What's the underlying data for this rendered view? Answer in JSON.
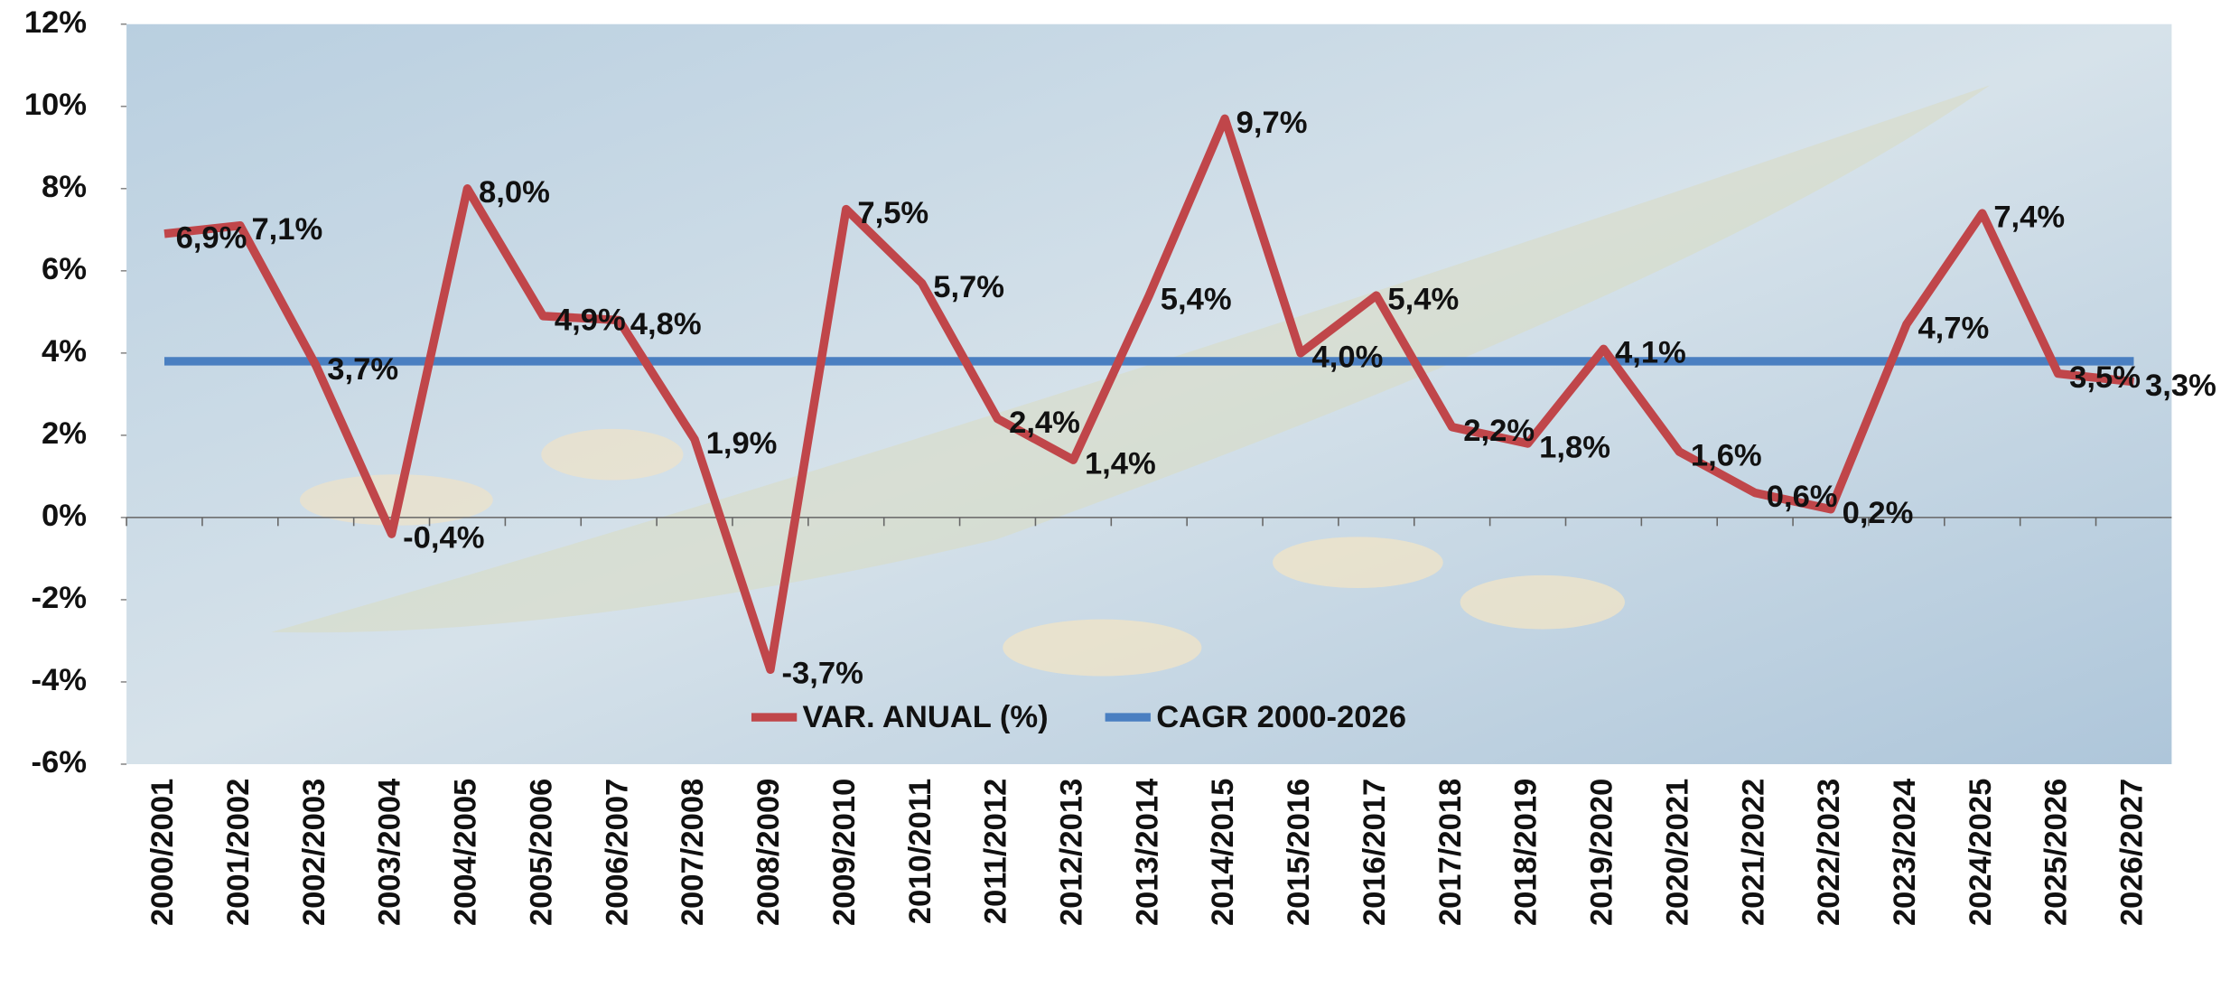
{
  "chart_data": {
    "type": "line",
    "categories": [
      "2000/2001",
      "2001/2002",
      "2002/2003",
      "2003/2004",
      "2004/2005",
      "2005/2006",
      "2006/2007",
      "2007/2008",
      "2008/2009",
      "2009/2010",
      "2010/2011",
      "2011/2012",
      "2012/2013",
      "2013/2014",
      "2014/2015",
      "2015/2016",
      "2016/2017",
      "2017/2018",
      "2018/2019",
      "2019/2020",
      "2020/2021",
      "2021/2022",
      "2022/2023",
      "2023/2024",
      "2024/2025",
      "2025/2026",
      "2026/2027"
    ],
    "series": [
      {
        "name": "VAR. ANUAL (%)",
        "color": "#c0464a",
        "values": [
          6.9,
          7.1,
          3.7,
          -0.4,
          8.0,
          4.9,
          4.8,
          1.9,
          -3.7,
          7.5,
          5.7,
          2.4,
          1.4,
          5.4,
          9.7,
          4.0,
          5.4,
          2.2,
          1.8,
          4.1,
          1.6,
          0.6,
          0.2,
          4.7,
          7.4,
          3.5,
          3.3
        ],
        "value_labels": [
          "6,9%",
          "7,1%",
          "3,7%",
          "-0,4%",
          "8,0%",
          "4,9%",
          "4,8%",
          "1,9%",
          "-3,7%",
          "7,5%",
          "5,7%",
          "2,4%",
          "1,4%",
          "5,4%",
          "9,7%",
          "4,0%",
          "5,4%",
          "2,2%",
          "1,8%",
          "4,1%",
          "1,6%",
          "0,6%",
          "0,2%",
          "4,7%",
          "7,4%",
          "3,5%",
          "3,3%"
        ]
      },
      {
        "name": "CAGR 2000-2026",
        "color": "#4a7fc1",
        "values": [
          3.8,
          3.8,
          3.8,
          3.8,
          3.8,
          3.8,
          3.8,
          3.8,
          3.8,
          3.8,
          3.8,
          3.8,
          3.8,
          3.8,
          3.8,
          3.8,
          3.8,
          3.8,
          3.8,
          3.8,
          3.8,
          3.8,
          3.8,
          3.8,
          3.8,
          3.8,
          3.8
        ]
      }
    ],
    "ylim": [
      -6,
      12
    ],
    "yticks": [
      {
        "value": -6,
        "label": "-6%"
      },
      {
        "value": -4,
        "label": "-4%"
      },
      {
        "value": -2,
        "label": "-2%"
      },
      {
        "value": 0,
        "label": "0%"
      },
      {
        "value": 2,
        "label": "2%"
      },
      {
        "value": 4,
        "label": "4%"
      },
      {
        "value": 6,
        "label": "6%"
      },
      {
        "value": 8,
        "label": "8%"
      },
      {
        "value": 10,
        "label": "10%"
      },
      {
        "value": 12,
        "label": "12%"
      }
    ],
    "legend": "bottom"
  }
}
